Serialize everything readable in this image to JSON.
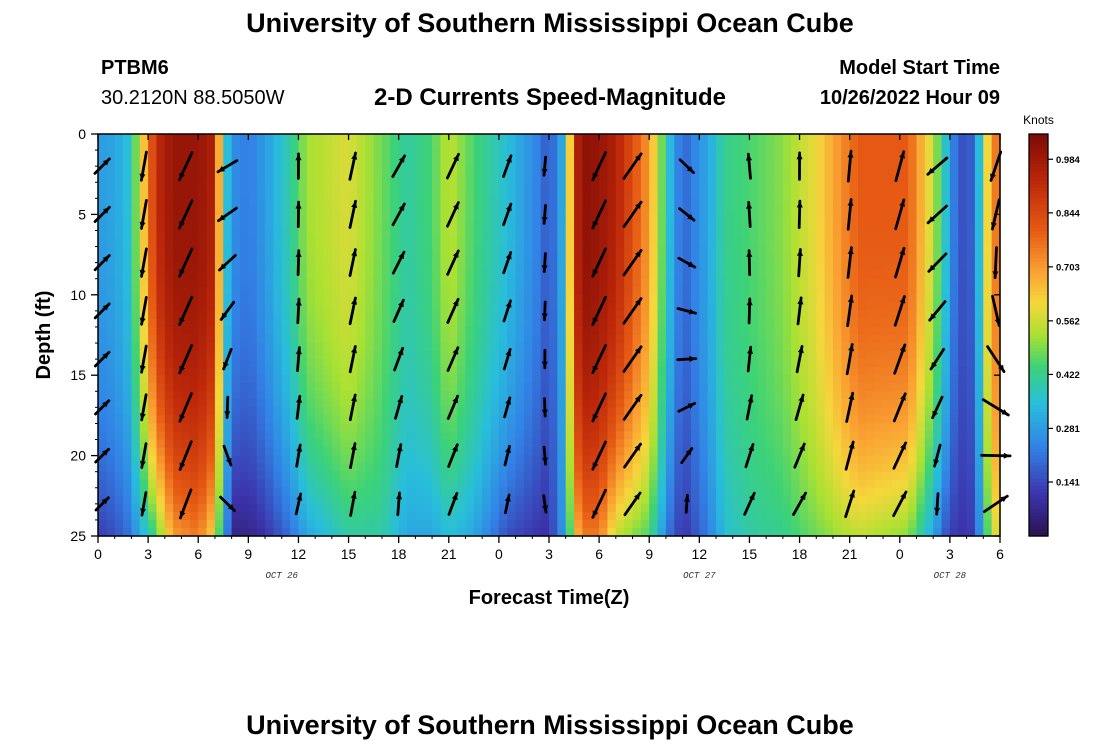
{
  "title": "University of Southern Mississippi Ocean Cube",
  "footer_title": "University of Southern Mississippi Ocean Cube",
  "station": {
    "id": "PTBM6",
    "coords": "30.2120N  88.5050W"
  },
  "model": {
    "label": "Model Start Time",
    "start": "10/26/2022 Hour 09"
  },
  "colors": {
    "arrow": "#000000",
    "frame": "#000000",
    "background": "#ffffff"
  },
  "chart_data": {
    "type": "heatmap",
    "title": "2-D Currents Speed-Magnitude",
    "xlabel": "Forecast Time(Z)",
    "ylabel": "Depth (ft)",
    "x_range_hours": [
      0,
      54
    ],
    "y_range_ft": [
      0,
      25
    ],
    "x_ticks": [
      "0",
      "3",
      "6",
      "9",
      "12",
      "15",
      "18",
      "21",
      "0",
      "3",
      "6",
      "9",
      "12",
      "15",
      "18",
      "21",
      "0",
      "3",
      "6"
    ],
    "y_ticks": [
      "0",
      "5",
      "10",
      "15",
      "20",
      "25"
    ],
    "date_labels": [
      {
        "text": "OCT 26",
        "hour": 11
      },
      {
        "text": "OCT 27",
        "hour": 36
      },
      {
        "text": "OCT 28",
        "hour": 51
      }
    ],
    "colorbar": {
      "title": "Knots",
      "range": [
        0.0,
        1.05
      ],
      "labels": [
        "0.984",
        "0.844",
        "0.703",
        "0.562",
        "0.422",
        "0.281",
        "0.141"
      ],
      "label_values": [
        0.984,
        0.844,
        0.703,
        0.562,
        0.422,
        0.281,
        0.141
      ]
    },
    "speed_surface_knots": {
      "hours": [
        0,
        1,
        1.8,
        2.5,
        3.5,
        4.5,
        6,
        7,
        7.5,
        8.2,
        9,
        10,
        11.5,
        12.5,
        15,
        17,
        18.5,
        20,
        21,
        22.5,
        24.5,
        26.5,
        27,
        28,
        28.5,
        29,
        30,
        31,
        33,
        34.2,
        35,
        36.5,
        37.5,
        39,
        41,
        43,
        45.5,
        48.5,
        50,
        50.8,
        51.5,
        52.4,
        53.2,
        53.5,
        54
      ],
      "surface_speed": [
        0.28,
        0.3,
        0.35,
        0.55,
        0.92,
        1.0,
        1.0,
        0.95,
        0.4,
        0.25,
        0.22,
        0.28,
        0.4,
        0.52,
        0.58,
        0.48,
        0.4,
        0.45,
        0.55,
        0.45,
        0.35,
        0.22,
        0.15,
        0.35,
        0.9,
        1.02,
        1.0,
        0.95,
        0.7,
        0.35,
        0.18,
        0.3,
        0.42,
        0.45,
        0.5,
        0.6,
        0.8,
        0.8,
        0.55,
        0.35,
        0.15,
        0.18,
        0.55,
        0.9,
        0.6
      ],
      "bottom_speed": [
        0.12,
        0.15,
        0.2,
        0.3,
        0.45,
        0.7,
        0.75,
        0.6,
        0.3,
        0.06,
        0.06,
        0.1,
        0.2,
        0.3,
        0.4,
        0.4,
        0.3,
        0.3,
        0.35,
        0.3,
        0.15,
        0.1,
        0.1,
        0.3,
        0.6,
        0.75,
        0.75,
        0.55,
        0.45,
        0.2,
        0.1,
        0.22,
        0.35,
        0.4,
        0.42,
        0.48,
        0.55,
        0.5,
        0.3,
        0.15,
        0.1,
        0.12,
        0.4,
        0.7,
        0.45
      ]
    },
    "vector_columns": [
      {
        "hour": 0.25,
        "dir_surface": 45,
        "dir_bottom": 45
      },
      {
        "hour": 2.75,
        "dir_surface": 190,
        "dir_bottom": 190
      },
      {
        "hour": 5.25,
        "dir_surface": 205,
        "dir_bottom": 200
      },
      {
        "hour": 7.75,
        "dir_surface": 240,
        "dir_bottom": 115
      },
      {
        "hour": 12.0,
        "dir_surface": 0,
        "dir_bottom": 15
      },
      {
        "hour": 15.25,
        "dir_surface": 12,
        "dir_bottom": 10
      },
      {
        "hour": 18.0,
        "dir_surface": 30,
        "dir_bottom": 0
      },
      {
        "hour": 21.25,
        "dir_surface": 25,
        "dir_bottom": 20
      },
      {
        "hour": 24.5,
        "dir_surface": 20,
        "dir_bottom": 10
      },
      {
        "hour": 26.75,
        "dir_surface": 185,
        "dir_bottom": 170
      },
      {
        "hour": 30.0,
        "dir_surface": 205,
        "dir_bottom": 205
      },
      {
        "hour": 32.0,
        "dir_surface": 35,
        "dir_bottom": 35
      },
      {
        "hour": 35.25,
        "dir_surface": 135,
        "dir_bottom": 340
      },
      {
        "hour": 39.0,
        "dir_surface": 355,
        "dir_bottom": 30
      },
      {
        "hour": 42.0,
        "dir_surface": 0,
        "dir_bottom": 35
      },
      {
        "hour": 45.0,
        "dir_surface": 5,
        "dir_bottom": 20
      },
      {
        "hour": 48.0,
        "dir_surface": 15,
        "dir_bottom": 30
      },
      {
        "hour": 50.25,
        "dir_surface": 230,
        "dir_bottom": 175
      },
      {
        "hour": 53.75,
        "dir_surface": 200,
        "dir_bottom": 30
      }
    ],
    "vector_depths_ft": [
      2,
      5,
      8,
      11,
      14,
      17,
      20,
      23
    ]
  }
}
